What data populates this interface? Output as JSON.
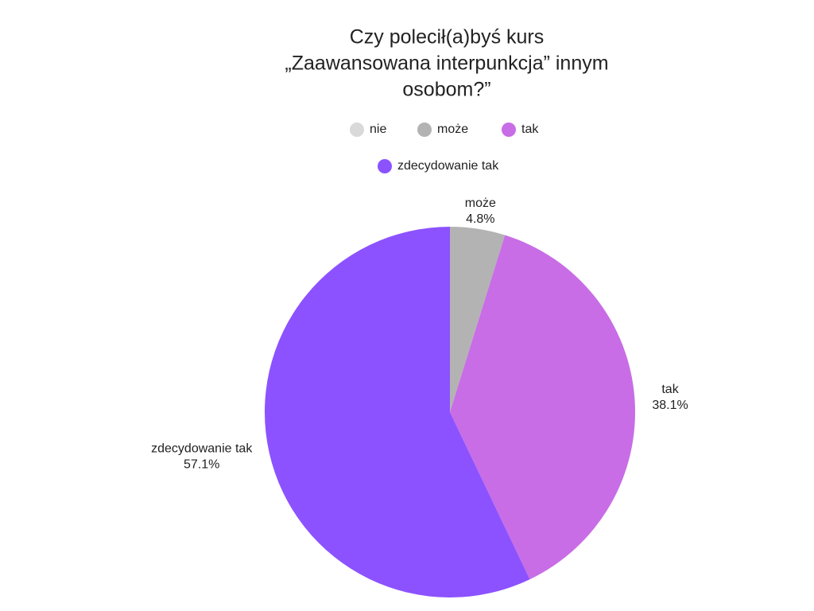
{
  "chart_data": {
    "type": "pie",
    "title": [
      "Czy polecił(a)byś kurs",
      "„Zaawansowana interpunkcja” innym",
      "osobom?”"
    ],
    "categories": [
      "nie",
      "może",
      "tak",
      "zdecydowanie tak"
    ],
    "values": [
      0,
      4.8,
      38.1,
      57.1
    ],
    "value_labels": [
      null,
      "4.8%",
      "38.1%",
      "57.1%"
    ],
    "colors": [
      "#d9d9d9",
      "#b3b3b3",
      "#c86de6",
      "#8c52ff"
    ]
  }
}
